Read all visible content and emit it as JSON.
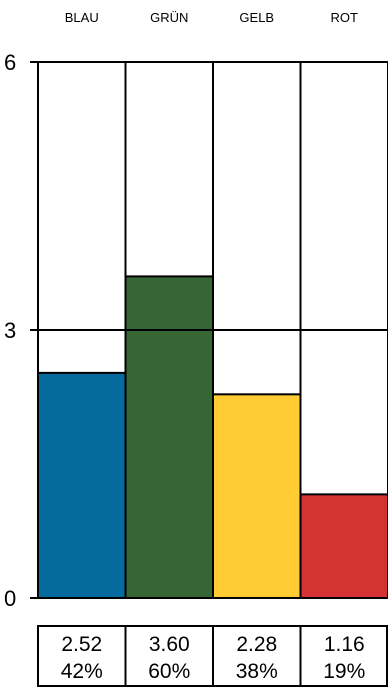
{
  "chart_data": {
    "type": "bar",
    "categories": [
      "BLAU",
      "GRÜN",
      "GELB",
      "ROT"
    ],
    "values": [
      2.52,
      3.6,
      2.28,
      1.16
    ],
    "percentages": [
      "42%",
      "60%",
      "38%",
      "19%"
    ],
    "value_labels": [
      "2.52",
      "3.60",
      "2.28",
      "1.16"
    ],
    "colors": [
      "#056a9e",
      "#356633",
      "#ffcc33",
      "#d33333"
    ],
    "yticks": [
      "0",
      "3",
      "6"
    ],
    "ylim": [
      0,
      6
    ],
    "grid": true,
    "title": "",
    "xlabel": "",
    "ylabel": ""
  }
}
